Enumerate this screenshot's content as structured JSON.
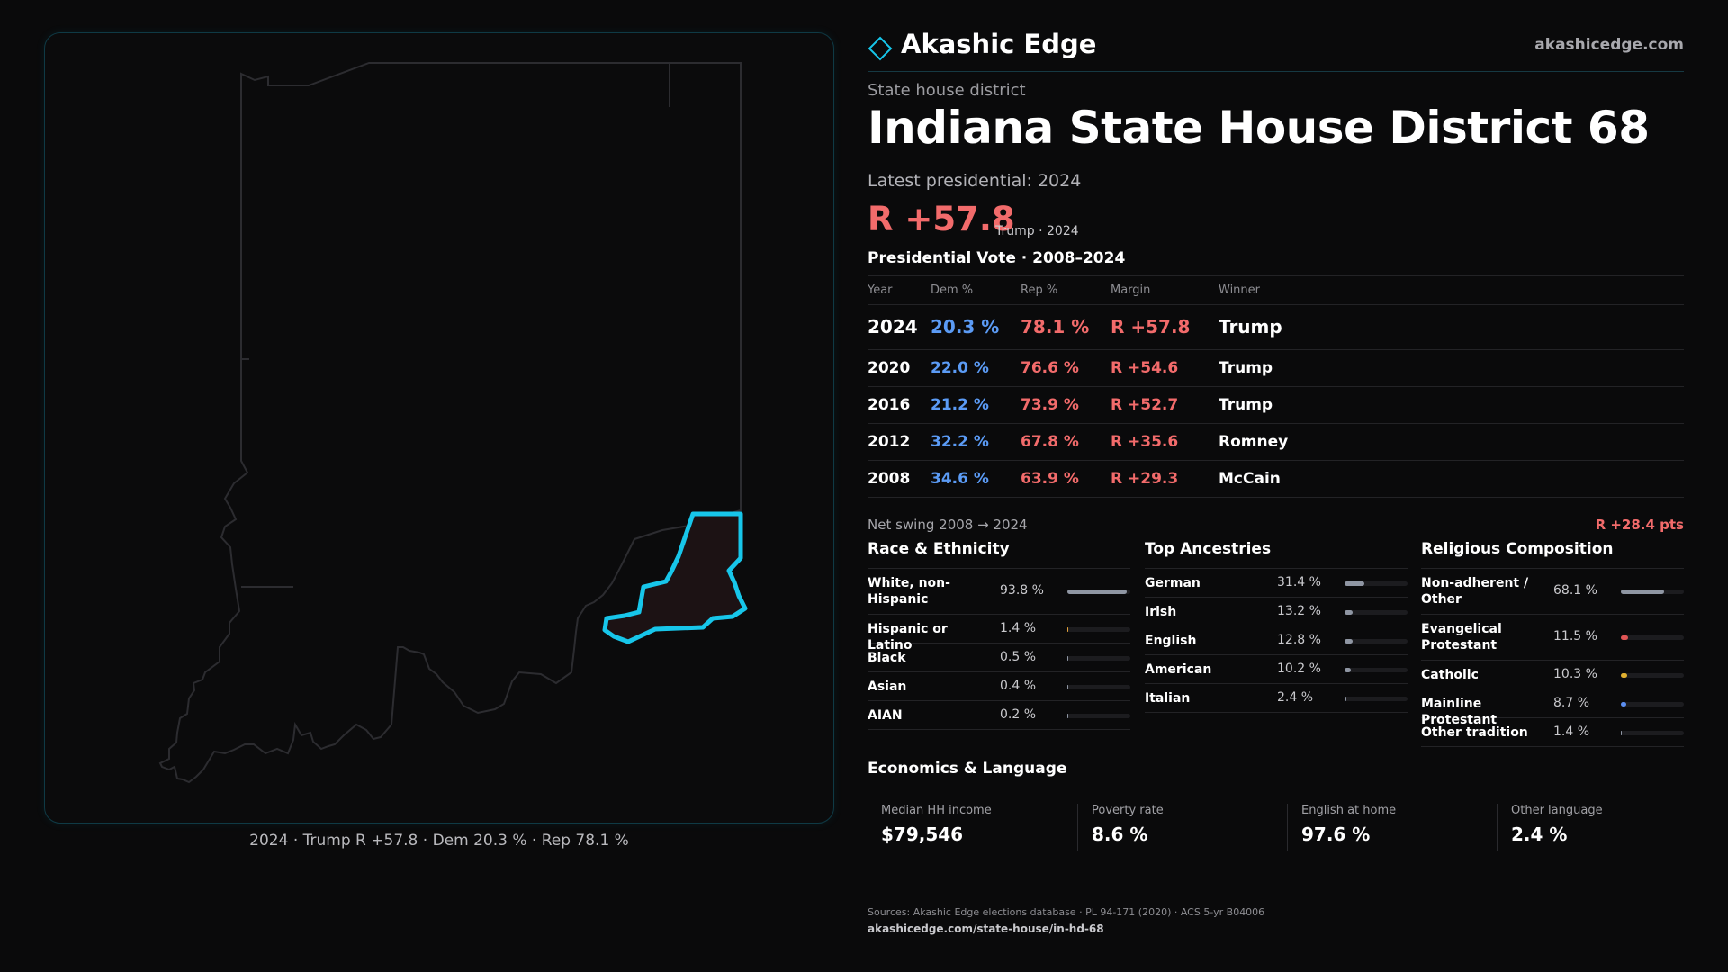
{
  "map": {
    "caption": "2024 · Trump R +57.8 · Dem 20.3 % · Rep 78.1 %",
    "state_outline_color": "#2c2c30",
    "district_stroke_color": "#17c6ea",
    "district_fill_color": "#1c1214"
  },
  "brand": {
    "name": "Akashic Edge",
    "url": "akashicedge.com",
    "logo_icon": "diamond-icon"
  },
  "header": {
    "kicker": "State house district",
    "title": "Indiana State House District 68",
    "latest_label": "Latest presidential: 2024",
    "margin_value": "R +57.8",
    "margin_sub": "Trump · 2024"
  },
  "vote_history": {
    "title": "Presidential Vote · 2008–2024",
    "columns": [
      "Year",
      "Dem %",
      "Rep %",
      "Margin",
      "Winner"
    ],
    "rows": [
      {
        "year": "2024",
        "dem": "20.3 %",
        "rep": "78.1 %",
        "margin": "R +57.8",
        "winner": "Trump"
      },
      {
        "year": "2020",
        "dem": "22.0 %",
        "rep": "76.6 %",
        "margin": "R +54.6",
        "winner": "Trump"
      },
      {
        "year": "2016",
        "dem": "21.2 %",
        "rep": "73.9 %",
        "margin": "R +52.7",
        "winner": "Trump"
      },
      {
        "year": "2012",
        "dem": "32.2 %",
        "rep": "67.8 %",
        "margin": "R +35.6",
        "winner": "Romney"
      },
      {
        "year": "2008",
        "dem": "34.6 %",
        "rep": "63.9 %",
        "margin": "R +29.3",
        "winner": "McCain"
      }
    ],
    "swing_label": "Net swing 2008 → 2024",
    "swing_value": "R +28.4 pts"
  },
  "race": {
    "title": "Race & Ethnicity",
    "rows": [
      {
        "label": "White, non-Hispanic",
        "value": "93.8 %",
        "share": 93.8,
        "color": "#8f96a3"
      },
      {
        "label": "Hispanic or Latino",
        "value": "1.4 %",
        "share": 1.4,
        "color": "#e0a03a"
      },
      {
        "label": "Black",
        "value": "0.5 %",
        "share": 0.5,
        "color": "#8f96a3"
      },
      {
        "label": "Asian",
        "value": "0.4 %",
        "share": 0.4,
        "color": "#8f96a3"
      },
      {
        "label": "AIAN",
        "value": "0.2 %",
        "share": 0.2,
        "color": "#8f96a3"
      }
    ]
  },
  "ancestry": {
    "title": "Top Ancestries",
    "rows": [
      {
        "label": "German",
        "value": "31.4 %",
        "share": 31.4,
        "color": "#8f96a3"
      },
      {
        "label": "Irish",
        "value": "13.2 %",
        "share": 13.2,
        "color": "#8f96a3"
      },
      {
        "label": "English",
        "value": "12.8 %",
        "share": 12.8,
        "color": "#8f96a3"
      },
      {
        "label": "American",
        "value": "10.2 %",
        "share": 10.2,
        "color": "#8f96a3"
      },
      {
        "label": "Italian",
        "value": "2.4 %",
        "share": 2.4,
        "color": "#8f96a3"
      }
    ]
  },
  "religion": {
    "title": "Religious Composition",
    "rows": [
      {
        "label": "Non-adherent / Other",
        "value": "68.1 %",
        "share": 68.1,
        "color": "#8f96a3"
      },
      {
        "label": "Evangelical Protestant",
        "value": "11.5 %",
        "share": 11.5,
        "color": "#e05555"
      },
      {
        "label": "Catholic",
        "value": "10.3 %",
        "share": 10.3,
        "color": "#e0b030"
      },
      {
        "label": "Mainline Protestant",
        "value": "8.7 %",
        "share": 8.7,
        "color": "#5b8ef0"
      },
      {
        "label": "Other tradition",
        "value": "1.4 %",
        "share": 1.4,
        "color": "#8f96a3"
      }
    ]
  },
  "economics": {
    "title": "Economics & Language",
    "cards": [
      {
        "label": "Median HH income",
        "value": "$79,546"
      },
      {
        "label": "Poverty rate",
        "value": "8.6 %"
      },
      {
        "label": "English at home",
        "value": "97.6 %"
      },
      {
        "label": "Other language",
        "value": "2.4 %"
      }
    ]
  },
  "sources": {
    "text": "Sources: Akashic Edge elections database · PL 94-171 (2020) · ACS 5-yr B04006",
    "url": "akashicedge.com/state-house/in-hd-68"
  }
}
